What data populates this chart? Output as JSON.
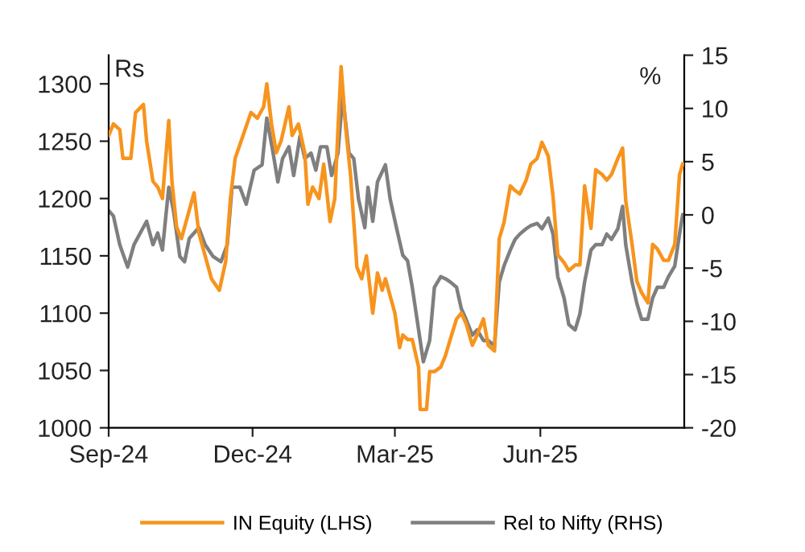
{
  "chart_data": {
    "type": "line",
    "ylabel": "Rs",
    "y2label": "%",
    "xlim": [
      "2024-09-01",
      "2025-08-31"
    ],
    "xticks": [
      {
        "value": "2024-09-01",
        "label": "Sep-24"
      },
      {
        "value": "2024-12-01",
        "label": "Dec-24"
      },
      {
        "value": "2025-03-01",
        "label": "Mar-25"
      },
      {
        "value": "2025-06-01",
        "label": "Jun-25"
      }
    ],
    "ylim": [
      1000,
      1325
    ],
    "yticks": [
      1000,
      1050,
      1100,
      1150,
      1200,
      1250,
      1300
    ],
    "y2lim": [
      -20,
      15
    ],
    "y2ticks": [
      -20,
      -15,
      -10,
      -5,
      0,
      5,
      10,
      15
    ],
    "grid": false,
    "legend": "bottom",
    "line_style": "solid",
    "marker": "none",
    "series": [
      {
        "name": "IN Equity (LHS)",
        "color": "#f7941d",
        "axis": "y",
        "x": [
          "2024-09-01",
          "2024-09-04",
          "2024-09-08",
          "2024-09-10",
          "2024-09-15",
          "2024-09-18",
          "2024-09-23",
          "2024-09-25",
          "2024-09-29",
          "2024-10-02",
          "2024-10-05",
          "2024-10-09",
          "2024-10-11",
          "2024-10-14",
          "2024-10-17",
          "2024-10-21",
          "2024-10-25",
          "2024-10-28",
          "2024-11-01",
          "2024-11-05",
          "2024-11-10",
          "2024-11-14",
          "2024-11-17",
          "2024-11-20",
          "2024-11-25",
          "2024-11-30",
          "2024-12-04",
          "2024-12-08",
          "2024-12-10",
          "2024-12-13",
          "2024-12-16",
          "2024-12-19",
          "2024-12-24",
          "2024-12-26",
          "2024-12-30",
          "2025-01-03",
          "2025-01-05",
          "2025-01-08",
          "2025-01-12",
          "2025-01-15",
          "2025-01-19",
          "2025-01-22",
          "2025-01-24",
          "2025-01-26",
          "2025-01-29",
          "2025-02-01",
          "2025-02-05",
          "2025-02-08",
          "2025-02-11",
          "2025-02-15",
          "2025-02-18",
          "2025-02-21",
          "2025-02-23",
          "2025-03-01",
          "2025-03-04",
          "2025-03-06",
          "2025-03-09",
          "2025-03-12",
          "2025-03-16",
          "2025-03-17",
          "2025-03-21",
          "2025-03-23",
          "2025-03-26",
          "2025-03-30",
          "2025-04-02",
          "2025-04-05",
          "2025-04-09",
          "2025-04-12",
          "2025-04-15",
          "2025-04-19",
          "2025-04-22",
          "2025-04-26",
          "2025-04-29",
          "2025-05-03",
          "2025-05-06",
          "2025-05-09",
          "2025-05-13",
          "2025-05-16",
          "2025-05-19",
          "2025-05-23",
          "2025-05-26",
          "2025-05-30",
          "2025-06-02",
          "2025-06-06",
          "2025-06-09",
          "2025-06-12",
          "2025-06-16",
          "2025-06-19",
          "2025-06-23",
          "2025-06-26",
          "2025-06-29",
          "2025-07-03",
          "2025-07-06",
          "2025-07-10",
          "2025-07-13",
          "2025-07-16",
          "2025-07-20",
          "2025-07-23",
          "2025-07-25",
          "2025-07-29",
          "2025-08-01",
          "2025-08-04",
          "2025-08-08",
          "2025-08-11",
          "2025-08-14",
          "2025-08-18",
          "2025-08-21",
          "2025-08-25",
          "2025-08-28",
          "2025-08-30"
        ],
        "values": [
          1255,
          1265,
          1260,
          1235,
          1235,
          1275,
          1282,
          1250,
          1215,
          1210,
          1200,
          1268,
          1215,
          1175,
          1165,
          1185,
          1205,
          1170,
          1150,
          1130,
          1120,
          1145,
          1200,
          1235,
          1255,
          1275,
          1270,
          1280,
          1300,
          1265,
          1240,
          1250,
          1280,
          1255,
          1265,
          1240,
          1195,
          1210,
          1200,
          1230,
          1180,
          1200,
          1260,
          1315,
          1260,
          1220,
          1140,
          1130,
          1150,
          1100,
          1135,
          1120,
          1130,
          1100,
          1070,
          1081,
          1077,
          1077,
          1053,
          1016,
          1016,
          1049,
          1049,
          1053,
          1063,
          1077,
          1095,
          1100,
          1091,
          1072,
          1081,
          1095,
          1072,
          1067,
          1165,
          1179,
          1211,
          1207,
          1204,
          1216,
          1230,
          1235,
          1249,
          1237,
          1202,
          1151,
          1144,
          1137,
          1142,
          1142,
          1211,
          1174,
          1225,
          1221,
          1216,
          1221,
          1235,
          1244,
          1198,
          1160,
          1128,
          1118,
          1109,
          1160,
          1156,
          1146,
          1146,
          1160,
          1221,
          1230
        ]
      },
      {
        "name": "Rel to Nifty (RHS)",
        "color": "#7f7f7f",
        "axis": "y2",
        "x": [
          "2024-09-01",
          "2024-09-04",
          "2024-09-08",
          "2024-09-13",
          "2024-09-17",
          "2024-09-21",
          "2024-09-25",
          "2024-09-29",
          "2024-10-02",
          "2024-10-05",
          "2024-10-09",
          "2024-10-12",
          "2024-10-16",
          "2024-10-19",
          "2024-10-22",
          "2024-10-28",
          "2024-11-01",
          "2024-11-06",
          "2024-11-11",
          "2024-11-15",
          "2024-11-18",
          "2024-11-23",
          "2024-11-27",
          "2024-12-02",
          "2024-12-07",
          "2024-12-10",
          "2024-12-14",
          "2024-12-17",
          "2024-12-20",
          "2024-12-24",
          "2024-12-27",
          "2024-12-31",
          "2025-01-03",
          "2025-01-07",
          "2025-01-10",
          "2025-01-13",
          "2025-01-17",
          "2025-01-20",
          "2025-01-24",
          "2025-01-27",
          "2025-01-31",
          "2025-02-03",
          "2025-02-06",
          "2025-02-10",
          "2025-02-12",
          "2025-02-15",
          "2025-02-18",
          "2025-02-23",
          "2025-02-26",
          "2025-03-02",
          "2025-03-06",
          "2025-03-09",
          "2025-03-12",
          "2025-03-16",
          "2025-03-19",
          "2025-03-23",
          "2025-03-26",
          "2025-03-30",
          "2025-04-02",
          "2025-04-05",
          "2025-04-09",
          "2025-04-12",
          "2025-04-15",
          "2025-04-19",
          "2025-04-22",
          "2025-04-26",
          "2025-04-29",
          "2025-05-03",
          "2025-05-06",
          "2025-05-09",
          "2025-05-13",
          "2025-05-16",
          "2025-05-19",
          "2025-05-23",
          "2025-05-26",
          "2025-05-30",
          "2025-06-02",
          "2025-06-06",
          "2025-06-09",
          "2025-06-12",
          "2025-06-16",
          "2025-06-19",
          "2025-06-23",
          "2025-06-26",
          "2025-06-29",
          "2025-07-03",
          "2025-07-06",
          "2025-07-10",
          "2025-07-13",
          "2025-07-16",
          "2025-07-20",
          "2025-07-23",
          "2025-07-25",
          "2025-07-29",
          "2025-08-01",
          "2025-08-04",
          "2025-08-08",
          "2025-08-11",
          "2025-08-14",
          "2025-08-18",
          "2025-08-21",
          "2025-08-25",
          "2025-08-28",
          "2025-08-30"
        ],
        "values": [
          0.4,
          -0.1,
          -2.8,
          -4.9,
          -2.8,
          -1.7,
          -0.6,
          -2.8,
          -1.7,
          -3.3,
          2.6,
          0.4,
          -3.9,
          -4.4,
          -2.2,
          -1.2,
          -2.8,
          -3.9,
          -4.4,
          -2.8,
          2.6,
          2.6,
          1.0,
          4.2,
          4.7,
          9.1,
          5.8,
          3.1,
          5.3,
          6.4,
          3.7,
          7.4,
          5.3,
          5.8,
          4.2,
          6.4,
          6.4,
          3.7,
          5.8,
          11.2,
          5.8,
          5.3,
          1.5,
          -1.2,
          2.6,
          -0.6,
          3.1,
          4.7,
          1.5,
          -1.2,
          -3.8,
          -4.3,
          -6.8,
          -10.8,
          -13.8,
          -11.8,
          -6.8,
          -5.8,
          -6.0,
          -6.3,
          -6.8,
          -8.8,
          -9.8,
          -11.3,
          -10.8,
          -11.8,
          -11.8,
          -12.3,
          -6.3,
          -4.8,
          -3.3,
          -2.3,
          -1.8,
          -1.3,
          -1.0,
          -0.8,
          -1.3,
          -0.3,
          -1.8,
          -5.8,
          -7.8,
          -10.3,
          -10.8,
          -9.3,
          -6.3,
          -3.3,
          -2.8,
          -2.8,
          -1.8,
          -2.3,
          -1.3,
          0.8,
          -2.8,
          -6.3,
          -8.3,
          -9.8,
          -9.8,
          -7.8,
          -6.8,
          -6.8,
          -5.8,
          -4.8,
          -1.8,
          0.0
        ]
      }
    ]
  }
}
